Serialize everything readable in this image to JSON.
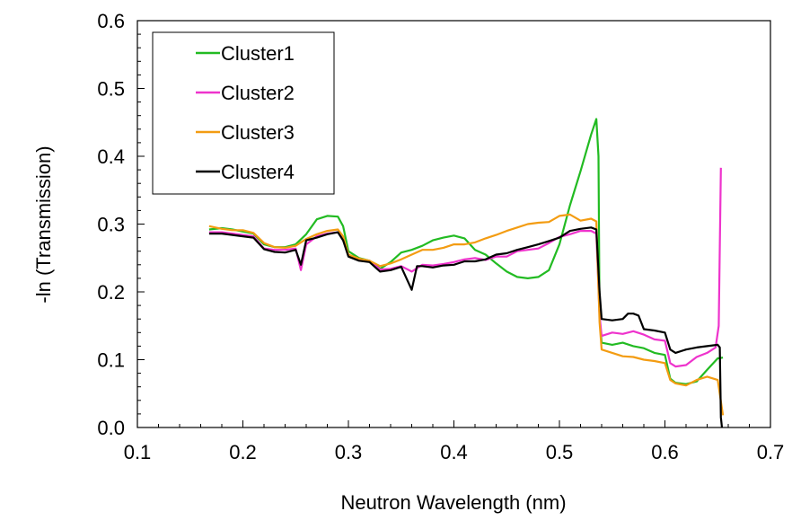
{
  "chart_data": {
    "type": "line",
    "title": "",
    "xlabel": "Neutron Wavelength (nm)",
    "ylabel": "-ln (Transmission)",
    "xlim": [
      0.1,
      0.7
    ],
    "ylim": [
      0.0,
      0.6
    ],
    "xticks": [
      "0.1",
      "0.2",
      "0.3",
      "0.4",
      "0.5",
      "0.6",
      "0.7"
    ],
    "yticks": [
      "0.0",
      "0.1",
      "0.2",
      "0.3",
      "0.4",
      "0.5",
      "0.6"
    ],
    "grid": false,
    "legend_position": "top-left",
    "series": [
      {
        "name": "Cluster1",
        "color": "#22bb22",
        "points": [
          [
            0.168,
            0.292
          ],
          [
            0.18,
            0.294
          ],
          [
            0.19,
            0.292
          ],
          [
            0.2,
            0.289
          ],
          [
            0.21,
            0.286
          ],
          [
            0.22,
            0.27
          ],
          [
            0.23,
            0.266
          ],
          [
            0.24,
            0.266
          ],
          [
            0.25,
            0.27
          ],
          [
            0.26,
            0.285
          ],
          [
            0.27,
            0.307
          ],
          [
            0.28,
            0.312
          ],
          [
            0.29,
            0.311
          ],
          [
            0.295,
            0.297
          ],
          [
            0.3,
            0.26
          ],
          [
            0.31,
            0.25
          ],
          [
            0.32,
            0.246
          ],
          [
            0.33,
            0.234
          ],
          [
            0.34,
            0.244
          ],
          [
            0.35,
            0.258
          ],
          [
            0.36,
            0.262
          ],
          [
            0.37,
            0.268
          ],
          [
            0.38,
            0.276
          ],
          [
            0.39,
            0.28
          ],
          [
            0.4,
            0.283
          ],
          [
            0.41,
            0.279
          ],
          [
            0.42,
            0.262
          ],
          [
            0.43,
            0.255
          ],
          [
            0.44,
            0.242
          ],
          [
            0.45,
            0.23
          ],
          [
            0.46,
            0.222
          ],
          [
            0.47,
            0.22
          ],
          [
            0.48,
            0.222
          ],
          [
            0.49,
            0.232
          ],
          [
            0.5,
            0.27
          ],
          [
            0.51,
            0.328
          ],
          [
            0.52,
            0.378
          ],
          [
            0.53,
            0.432
          ],
          [
            0.535,
            0.455
          ],
          [
            0.537,
            0.4
          ],
          [
            0.538,
            0.162
          ],
          [
            0.54,
            0.125
          ],
          [
            0.55,
            0.122
          ],
          [
            0.56,
            0.125
          ],
          [
            0.57,
            0.12
          ],
          [
            0.58,
            0.117
          ],
          [
            0.59,
            0.11
          ],
          [
            0.6,
            0.107
          ],
          [
            0.605,
            0.072
          ],
          [
            0.61,
            0.066
          ],
          [
            0.62,
            0.064
          ],
          [
            0.63,
            0.068
          ],
          [
            0.64,
            0.085
          ],
          [
            0.65,
            0.102
          ],
          [
            0.655,
            0.103
          ]
        ]
      },
      {
        "name": "Cluster2",
        "color": "#ee33cc",
        "points": [
          [
            0.168,
            0.288
          ],
          [
            0.18,
            0.288
          ],
          [
            0.19,
            0.286
          ],
          [
            0.2,
            0.284
          ],
          [
            0.21,
            0.282
          ],
          [
            0.22,
            0.264
          ],
          [
            0.23,
            0.262
          ],
          [
            0.24,
            0.262
          ],
          [
            0.25,
            0.264
          ],
          [
            0.255,
            0.232
          ],
          [
            0.26,
            0.27
          ],
          [
            0.27,
            0.282
          ],
          [
            0.28,
            0.286
          ],
          [
            0.29,
            0.288
          ],
          [
            0.295,
            0.278
          ],
          [
            0.3,
            0.255
          ],
          [
            0.31,
            0.248
          ],
          [
            0.32,
            0.246
          ],
          [
            0.33,
            0.233
          ],
          [
            0.34,
            0.234
          ],
          [
            0.35,
            0.238
          ],
          [
            0.36,
            0.23
          ],
          [
            0.37,
            0.24
          ],
          [
            0.38,
            0.239
          ],
          [
            0.39,
            0.241
          ],
          [
            0.4,
            0.244
          ],
          [
            0.41,
            0.248
          ],
          [
            0.42,
            0.25
          ],
          [
            0.43,
            0.247
          ],
          [
            0.44,
            0.252
          ],
          [
            0.45,
            0.252
          ],
          [
            0.46,
            0.26
          ],
          [
            0.47,
            0.262
          ],
          [
            0.48,
            0.264
          ],
          [
            0.49,
            0.272
          ],
          [
            0.5,
            0.281
          ],
          [
            0.51,
            0.285
          ],
          [
            0.52,
            0.29
          ],
          [
            0.53,
            0.29
          ],
          [
            0.535,
            0.286
          ],
          [
            0.538,
            0.165
          ],
          [
            0.54,
            0.135
          ],
          [
            0.55,
            0.14
          ],
          [
            0.56,
            0.138
          ],
          [
            0.57,
            0.142
          ],
          [
            0.58,
            0.137
          ],
          [
            0.59,
            0.13
          ],
          [
            0.6,
            0.128
          ],
          [
            0.605,
            0.095
          ],
          [
            0.61,
            0.09
          ],
          [
            0.62,
            0.092
          ],
          [
            0.63,
            0.104
          ],
          [
            0.64,
            0.11
          ],
          [
            0.648,
            0.118
          ],
          [
            0.651,
            0.15
          ],
          [
            0.653,
            0.383
          ]
        ]
      },
      {
        "name": "Cluster3",
        "color": "#f39c12",
        "points": [
          [
            0.168,
            0.297
          ],
          [
            0.18,
            0.293
          ],
          [
            0.19,
            0.291
          ],
          [
            0.2,
            0.291
          ],
          [
            0.21,
            0.287
          ],
          [
            0.22,
            0.272
          ],
          [
            0.23,
            0.266
          ],
          [
            0.24,
            0.265
          ],
          [
            0.25,
            0.268
          ],
          [
            0.26,
            0.278
          ],
          [
            0.27,
            0.285
          ],
          [
            0.28,
            0.29
          ],
          [
            0.29,
            0.292
          ],
          [
            0.295,
            0.282
          ],
          [
            0.3,
            0.255
          ],
          [
            0.31,
            0.249
          ],
          [
            0.32,
            0.246
          ],
          [
            0.33,
            0.238
          ],
          [
            0.34,
            0.242
          ],
          [
            0.35,
            0.248
          ],
          [
            0.36,
            0.255
          ],
          [
            0.37,
            0.262
          ],
          [
            0.38,
            0.262
          ],
          [
            0.39,
            0.265
          ],
          [
            0.4,
            0.27
          ],
          [
            0.41,
            0.27
          ],
          [
            0.42,
            0.273
          ],
          [
            0.43,
            0.279
          ],
          [
            0.44,
            0.284
          ],
          [
            0.45,
            0.29
          ],
          [
            0.46,
            0.295
          ],
          [
            0.47,
            0.3
          ],
          [
            0.48,
            0.302
          ],
          [
            0.49,
            0.303
          ],
          [
            0.5,
            0.312
          ],
          [
            0.51,
            0.314
          ],
          [
            0.52,
            0.305
          ],
          [
            0.53,
            0.308
          ],
          [
            0.535,
            0.304
          ],
          [
            0.538,
            0.155
          ],
          [
            0.54,
            0.115
          ],
          [
            0.55,
            0.11
          ],
          [
            0.56,
            0.105
          ],
          [
            0.57,
            0.104
          ],
          [
            0.58,
            0.1
          ],
          [
            0.59,
            0.098
          ],
          [
            0.6,
            0.095
          ],
          [
            0.605,
            0.07
          ],
          [
            0.61,
            0.065
          ],
          [
            0.62,
            0.062
          ],
          [
            0.63,
            0.07
          ],
          [
            0.64,
            0.075
          ],
          [
            0.65,
            0.07
          ],
          [
            0.655,
            0.018
          ]
        ]
      },
      {
        "name": "Cluster4",
        "color": "#000000",
        "points": [
          [
            0.168,
            0.286
          ],
          [
            0.18,
            0.286
          ],
          [
            0.19,
            0.284
          ],
          [
            0.2,
            0.282
          ],
          [
            0.21,
            0.28
          ],
          [
            0.22,
            0.263
          ],
          [
            0.23,
            0.259
          ],
          [
            0.24,
            0.258
          ],
          [
            0.25,
            0.262
          ],
          [
            0.255,
            0.24
          ],
          [
            0.26,
            0.276
          ],
          [
            0.27,
            0.28
          ],
          [
            0.28,
            0.285
          ],
          [
            0.29,
            0.288
          ],
          [
            0.295,
            0.276
          ],
          [
            0.3,
            0.252
          ],
          [
            0.31,
            0.246
          ],
          [
            0.32,
            0.244
          ],
          [
            0.33,
            0.23
          ],
          [
            0.34,
            0.232
          ],
          [
            0.35,
            0.237
          ],
          [
            0.36,
            0.203
          ],
          [
            0.365,
            0.238
          ],
          [
            0.37,
            0.238
          ],
          [
            0.38,
            0.236
          ],
          [
            0.39,
            0.239
          ],
          [
            0.4,
            0.24
          ],
          [
            0.41,
            0.245
          ],
          [
            0.42,
            0.245
          ],
          [
            0.43,
            0.248
          ],
          [
            0.44,
            0.255
          ],
          [
            0.45,
            0.257
          ],
          [
            0.46,
            0.262
          ],
          [
            0.47,
            0.266
          ],
          [
            0.48,
            0.27
          ],
          [
            0.49,
            0.275
          ],
          [
            0.5,
            0.28
          ],
          [
            0.51,
            0.29
          ],
          [
            0.52,
            0.293
          ],
          [
            0.53,
            0.295
          ],
          [
            0.535,
            0.292
          ],
          [
            0.538,
            0.2
          ],
          [
            0.54,
            0.16
          ],
          [
            0.55,
            0.158
          ],
          [
            0.56,
            0.16
          ],
          [
            0.565,
            0.168
          ],
          [
            0.57,
            0.168
          ],
          [
            0.575,
            0.165
          ],
          [
            0.58,
            0.145
          ],
          [
            0.59,
            0.143
          ],
          [
            0.6,
            0.14
          ],
          [
            0.605,
            0.115
          ],
          [
            0.61,
            0.11
          ],
          [
            0.62,
            0.115
          ],
          [
            0.63,
            0.118
          ],
          [
            0.64,
            0.12
          ],
          [
            0.65,
            0.122
          ],
          [
            0.652,
            0.118
          ],
          [
            0.653,
            0.015
          ],
          [
            0.654,
            0.0
          ]
        ]
      }
    ]
  }
}
